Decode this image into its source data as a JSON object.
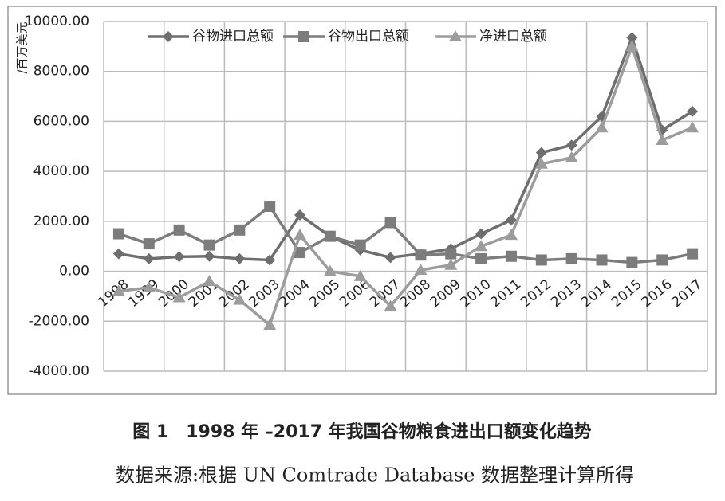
{
  "chart_data": {
    "type": "line",
    "y_label": "/百万美元",
    "caption": "图 1　1998 年 –2017 年我国谷物粮食进出口额变化趋势",
    "source": "数据来源:根据 UN Comtrade Database 数据整理计算所得",
    "categories": [
      "1998",
      "1999",
      "2000",
      "2001",
      "2002",
      "2003",
      "2004",
      "2005",
      "2006",
      "2007",
      "2008",
      "2009",
      "2010",
      "2011",
      "2012",
      "2013",
      "2014",
      "2015",
      "2016",
      "2017"
    ],
    "series": [
      {
        "name": "谷物进口总额",
        "color": "#6e6e6e",
        "marker": "diamond",
        "values": [
          700,
          500,
          580,
          600,
          500,
          450,
          2250,
          1400,
          850,
          550,
          700,
          900,
          1500,
          2050,
          4750,
          5050,
          6200,
          9350,
          5650,
          6400
        ]
      },
      {
        "name": "谷物出口总额",
        "color": "#7c7c7c",
        "marker": "square",
        "values": [
          1500,
          1100,
          1650,
          1050,
          1650,
          2600,
          750,
          1400,
          1050,
          1950,
          650,
          700,
          500,
          600,
          450,
          500,
          450,
          350,
          450,
          700
        ]
      },
      {
        "name": "净进口总额",
        "color": "#9c9c9c",
        "marker": "triangle",
        "values": [
          -800,
          -650,
          -1050,
          -400,
          -1150,
          -2150,
          1450,
          0,
          -200,
          -1400,
          50,
          250,
          1000,
          1450,
          4300,
          4550,
          5750,
          9000,
          5250,
          5750
        ]
      }
    ],
    "ylim": [
      -4000,
      10000
    ],
    "yticks": [
      {
        "value": 10000,
        "label": "10000.00"
      },
      {
        "value": 8000,
        "label": "8000.00"
      },
      {
        "value": 6000,
        "label": "6000.00"
      },
      {
        "value": 4000,
        "label": "4000.00"
      },
      {
        "value": 2000,
        "label": "2000.00"
      },
      {
        "value": 0,
        "label": "0.00"
      },
      {
        "value": -2000,
        "label": "-2000.00"
      },
      {
        "value": -4000,
        "label": "-4000.00"
      }
    ],
    "grid": true
  }
}
